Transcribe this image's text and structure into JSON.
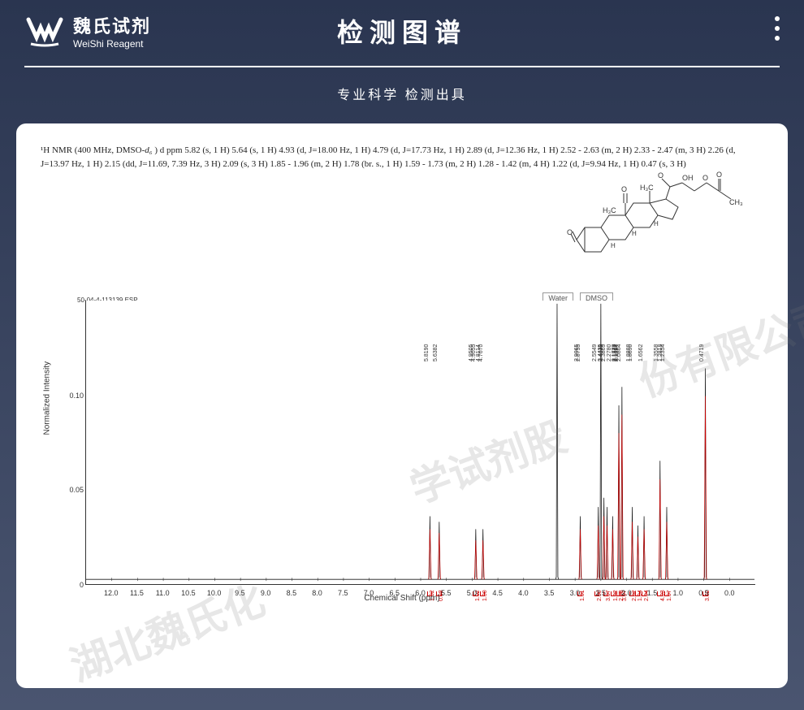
{
  "header": {
    "logo_cn": "魏氏试剂",
    "logo_en": "WeiShi Reagent",
    "title": "检测图谱",
    "subtitle": "专业科学 检测出具"
  },
  "nmr": {
    "prefix": "¹H NMR (400 MHz, DMSO-",
    "solvent_sub": "d₆",
    "text": " ) d ppm 5.82 (s, 1 H) 5.64 (s, 1 H) 4.93 (d, J=18.00 Hz, 1 H) 4.79 (d, J=17.73 Hz, 1 H) 2.89 (d, J=12.36 Hz, 1 H) 2.52 - 2.63 (m, 2 H) 2.33 - 2.47 (m, 3 H) 2.26 (d, J=13.97 Hz, 1 H) 2.15 (dd, J=11.69, 7.39 Hz, 3 H) 2.09 (s, 3 H) 1.85 - 1.96 (m, 2 H) 1.78 (br. s., 1 H) 1.59 - 1.73 (m, 2 H) 1.28 - 1.42 (m, 4 H) 1.22 (d, J=9.94 Hz, 1 H) 0.47 (s, 3 H)"
  },
  "structure_labels": {
    "ch3_1": "H₃C",
    "ch3_2": "H₃C",
    "ch3_3": "CH₃",
    "o1": "O",
    "o2": "O",
    "o3": "O",
    "o4": "O",
    "oh": "OH",
    "h1": "H",
    "h2": "H",
    "h3": "H"
  },
  "spectrum": {
    "file": "50-04-4-113139.ESP",
    "solvent1": "Water",
    "solvent2": "DMSO",
    "y_label": "Normalized Intensity",
    "x_label": "Chemical Shift (ppm)",
    "x_range": [
      -0.5,
      12.5
    ],
    "y_range": [
      0,
      0.15
    ],
    "y_ticks": [
      {
        "v": 0,
        "l": "0"
      },
      {
        "v": 0.05,
        "l": "0.05"
      },
      {
        "v": 0.1,
        "l": "0.10"
      }
    ],
    "x_ticks": [
      12.0,
      11.5,
      11.0,
      10.5,
      10.0,
      9.5,
      9.0,
      8.5,
      8.0,
      7.5,
      7.0,
      6.5,
      6.0,
      5.5,
      5.0,
      4.5,
      4.0,
      3.5,
      3.0,
      2.5,
      2.0,
      1.5,
      1.0,
      0.5,
      0
    ],
    "peak_values": [
      "5.8190",
      "5.6382",
      "4.9505",
      "4.9055",
      "4.8114",
      "4.7670",
      "2.9065",
      "2.8755",
      "2.5549",
      "2.4435",
      "2.4238",
      "2.3869",
      "2.2780",
      "2.1772",
      "2.1570",
      "2.1462",
      "2.1284",
      "2.0864",
      "1.8888",
      "1.8690",
      "1.6562",
      "1.3558",
      "1.2818",
      "1.2354",
      "0.4719"
    ],
    "peaks": [
      {
        "ppm": 5.82,
        "h": 0.035,
        "red": 0.028
      },
      {
        "ppm": 5.64,
        "h": 0.032,
        "red": 0.026
      },
      {
        "ppm": 4.93,
        "h": 0.028,
        "red": 0.022
      },
      {
        "ppm": 4.79,
        "h": 0.028,
        "red": 0.022
      },
      {
        "ppm": 3.35,
        "h": 0.15,
        "red": 0
      },
      {
        "ppm": 2.9,
        "h": 0.035,
        "red": 0.028
      },
      {
        "ppm": 2.5,
        "h": 0.15,
        "red": 0
      },
      {
        "ppm": 2.55,
        "h": 0.04,
        "red": 0.03
      },
      {
        "ppm": 2.44,
        "h": 0.045,
        "red": 0.035
      },
      {
        "ppm": 2.38,
        "h": 0.04,
        "red": 0.03
      },
      {
        "ppm": 2.27,
        "h": 0.035,
        "red": 0.028
      },
      {
        "ppm": 2.15,
        "h": 0.095,
        "red": 0.08
      },
      {
        "ppm": 2.09,
        "h": 0.105,
        "red": 0.09
      },
      {
        "ppm": 1.89,
        "h": 0.04,
        "red": 0.032
      },
      {
        "ppm": 1.78,
        "h": 0.03,
        "red": 0.024
      },
      {
        "ppm": 1.66,
        "h": 0.035,
        "red": 0.028
      },
      {
        "ppm": 1.35,
        "h": 0.065,
        "red": 0.055
      },
      {
        "ppm": 1.22,
        "h": 0.04,
        "red": 0.032
      },
      {
        "ppm": 0.47,
        "h": 0.115,
        "red": 0.1
      }
    ],
    "integrals": [
      {
        "ppm": 5.82,
        "v": "1.02"
      },
      {
        "ppm": 5.64,
        "v": "0.98"
      },
      {
        "ppm": 4.93,
        "v": "1.02"
      },
      {
        "ppm": 4.79,
        "v": "1.00"
      },
      {
        "ppm": 2.9,
        "v": "1.01"
      },
      {
        "ppm": 2.57,
        "v": "2.00"
      },
      {
        "ppm": 2.4,
        "v": "3.07"
      },
      {
        "ppm": 2.26,
        "v": "1.02"
      },
      {
        "ppm": 2.15,
        "v": "2.98"
      },
      {
        "ppm": 2.09,
        "v": "3.07"
      },
      {
        "ppm": 1.9,
        "v": "2.02"
      },
      {
        "ppm": 1.78,
        "v": "1.04"
      },
      {
        "ppm": 1.66,
        "v": "2.04"
      },
      {
        "ppm": 1.35,
        "v": "4.03"
      },
      {
        "ppm": 1.22,
        "v": "1.07"
      },
      {
        "ppm": 0.47,
        "v": "3.02"
      }
    ]
  },
  "watermark": "湖北魏氏化学试剂股份有限公司",
  "colors": {
    "spectrum_black": "#1a1a1a",
    "spectrum_red": "#cc0000",
    "bg_start": "#2a3550",
    "bg_end": "#4a5570"
  }
}
